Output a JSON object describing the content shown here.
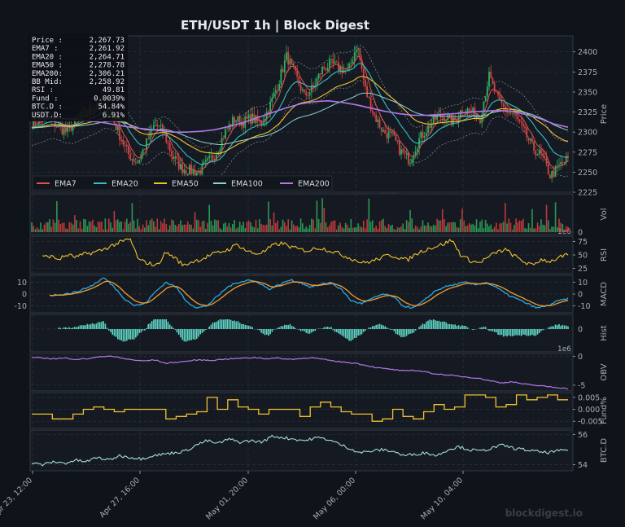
{
  "title": "ETH/USDT  1h  |  Block Digest",
  "watermark": "blockdigest.io",
  "colors": {
    "bg": "#0f131a",
    "panel": "#151a22",
    "grid": "#2a313c",
    "axis_text": "#a7adb6",
    "ema7": "#e05252",
    "ema20": "#35bfc4",
    "ema50": "#f2c12e",
    "ema100": "#8fd3d0",
    "ema200": "#b377e8",
    "up": "#2fae5f",
    "down": "#d9413f",
    "rsi": "#f2c12e",
    "macd": "#2ba8e0",
    "signal": "#f59a2b",
    "hist": "#5fd6c6",
    "obv": "#b377e8",
    "fund": "#f2c12e",
    "btcd": "#a8dcd8",
    "bbands": "#8a8f98"
  },
  "info_box": {
    "rows": [
      {
        "label": "Price :",
        "value": "2,267.73"
      },
      {
        "label": "EMA7  :",
        "value": "2,261.92"
      },
      {
        "label": "EMA20 :",
        "value": "2,264.71"
      },
      {
        "label": "EMA50 :",
        "value": "2,278.78"
      },
      {
        "label": "EMA200:",
        "value": "2,306.21"
      },
      {
        "label": "BB Mid:",
        "value": "2,258.92"
      },
      {
        "label": "RSI   :",
        "value": "49.81"
      },
      {
        "label": "Fund  :",
        "value": "0.0039%"
      },
      {
        "label": "BTC.D :",
        "value": "54.84%"
      },
      {
        "label": "USDT.D:",
        "value": "6.91%"
      }
    ]
  },
  "chart_data": {
    "type": "line",
    "x_ticks": [
      "Apr 23, 12:00",
      "Apr 27, 16:00",
      "May 01, 20:00",
      "May 06, 00:00",
      "May 10, 04:00"
    ],
    "panels": [
      {
        "name": "price",
        "ylabel": "Price",
        "ylim": [
          2225,
          2420
        ],
        "yticks": [
          "2225",
          "2250",
          "2275",
          "2300",
          "2325",
          "2350",
          "2375",
          "2400"
        ],
        "offset_label": "",
        "legend": [
          "EMA7",
          "EMA20",
          "EMA50",
          "EMA100",
          "EMA200"
        ],
        "legend_position": "bottom-left",
        "price_path_points": [
          2312,
          2315,
          2318,
          2306,
          2300,
          2314,
          2320,
          2330,
          2335,
          2322,
          2296,
          2272,
          2262,
          2285,
          2310,
          2300,
          2270,
          2255,
          2252,
          2250,
          2262,
          2275,
          2300,
          2316,
          2312,
          2318,
          2310,
          2330,
          2360,
          2395,
          2370,
          2345,
          2355,
          2378,
          2385,
          2380,
          2375,
          2410,
          2350,
          2320,
          2300,
          2295,
          2275,
          2265,
          2290,
          2305,
          2318,
          2320,
          2312,
          2330,
          2325,
          2318,
          2370,
          2340,
          2326,
          2320,
          2300,
          2280,
          2270,
          2245,
          2258,
          2267
        ],
        "ema200_points": [
          2318,
          2318,
          2317,
          2316,
          2314,
          2312,
          2309,
          2306,
          2304,
          2302,
          2300,
          2300,
          2301,
          2303,
          2307,
          2312,
          2318,
          2324,
          2330,
          2335,
          2338,
          2339,
          2337,
          2334,
          2330,
          2326,
          2323,
          2321,
          2321,
          2322,
          2323,
          2325,
          2326,
          2327,
          2326,
          2322,
          2317,
          2310,
          2306
        ]
      },
      {
        "name": "volume",
        "ylabel": "Vol",
        "offset_label": "1e6",
        "yticks": [
          "0"
        ]
      },
      {
        "name": "rsi",
        "ylabel": "RSI",
        "ylim": [
          15,
          85
        ],
        "yticks": [
          "25",
          "50",
          "75"
        ],
        "points": [
          40,
          45,
          48,
          42,
          50,
          46,
          52,
          55,
          60,
          68,
          74,
          80,
          40,
          35,
          30,
          55,
          45,
          30,
          38,
          42,
          50,
          55,
          60,
          70,
          58,
          52,
          56,
          68,
          72,
          65,
          60,
          58,
          64,
          60,
          55,
          48,
          42,
          35,
          38,
          44,
          50,
          46,
          40,
          52,
          60,
          65,
          70,
          78,
          50,
          40,
          35,
          45,
          55,
          60,
          48,
          38,
          30,
          42,
          38,
          45,
          50
        ]
      },
      {
        "name": "macd",
        "ylabel": "MACD",
        "ylim": [
          -16,
          16
        ],
        "yticks": [
          "-10",
          "0",
          "10"
        ],
        "macd_points": [
          -2,
          -1,
          -1,
          0,
          1,
          4,
          8,
          14,
          6,
          -4,
          -10,
          -8,
          2,
          10,
          6,
          -6,
          -12,
          -10,
          -2,
          6,
          10,
          12,
          10,
          4,
          8,
          12,
          10,
          6,
          8,
          10,
          4,
          -6,
          -8,
          -4,
          0,
          -2,
          -10,
          -12,
          -6,
          2,
          6,
          8,
          10,
          8,
          10,
          6,
          0,
          -4,
          -8,
          -12,
          -10,
          -6,
          -4
        ]
      },
      {
        "name": "hist",
        "ylabel": "Hist",
        "offset_label": "1e6",
        "yticks": [
          "0"
        ]
      },
      {
        "name": "obv",
        "ylabel": "OBV",
        "ylim": [
          -6,
          0.5
        ],
        "yticks": [
          "-5",
          "0"
        ],
        "points": [
          -0.2,
          -0.3,
          -0.4,
          -0.3,
          -0.5,
          -0.4,
          -0.1,
          0.1,
          -0.3,
          -0.6,
          -0.8,
          -0.6,
          -1.2,
          -1.0,
          -0.8,
          -0.6,
          -0.7,
          -0.5,
          -0.4,
          -0.3,
          -0.2,
          -0.4,
          -0.3,
          -0.5,
          -0.4,
          -0.2,
          -0.5,
          -0.8,
          -1.0,
          -1.2,
          -1.6,
          -2.0,
          -2.2,
          -2.5,
          -2.4,
          -2.6,
          -3.0,
          -3.2,
          -3.4,
          -3.6,
          -3.8,
          -4.2,
          -4.6,
          -4.4,
          -4.8,
          -5.0,
          -5.2,
          -5.4,
          -5.6
        ]
      },
      {
        "name": "funding",
        "ylabel": "Fund%",
        "ylim": [
          -0.008,
          0.007
        ],
        "yticks": [
          "-0.005",
          "0.000",
          "0.005"
        ],
        "points": [
          -0.002,
          -0.002,
          -0.004,
          -0.004,
          -0.002,
          0.0,
          0.001,
          0.0,
          -0.001,
          0.0,
          0.0,
          0.0,
          0.0,
          -0.004,
          -0.003,
          -0.002,
          -0.001,
          0.005,
          0.0,
          0.004,
          0.001,
          0.0,
          -0.002,
          0.0,
          0.0,
          0.0,
          -0.003,
          0.001,
          0.003,
          0.001,
          -0.001,
          -0.002,
          -0.002,
          -0.005,
          -0.004,
          0.0,
          -0.003,
          -0.004,
          -0.001,
          0.002,
          0.0,
          0.001,
          0.006,
          0.006,
          0.005,
          0.001,
          0.002,
          0.006,
          0.004,
          0.005,
          0.006,
          0.004
        ]
      },
      {
        "name": "btcd",
        "ylabel": "BTC.D",
        "ylim": [
          53.6,
          56.3
        ],
        "yticks": [
          "54",
          "56"
        ],
        "points": [
          54.1,
          54.0,
          54.2,
          54.1,
          54.3,
          54.2,
          54.5,
          54.3,
          54.6,
          54.5,
          54.4,
          54.6,
          54.7,
          54.8,
          54.9,
          55.3,
          55.6,
          55.4,
          55.7,
          55.5,
          55.6,
          55.5,
          55.9,
          55.8,
          55.7,
          55.6,
          55.8,
          55.7,
          55.4,
          55.1,
          54.8,
          54.9,
          55.0,
          54.9,
          54.6,
          54.7,
          54.8,
          54.6,
          55.0,
          55.2,
          55.0,
          54.9,
          55.1,
          55.3,
          55.1,
          55.0,
          54.9,
          54.8,
          54.9,
          55.0
        ]
      }
    ]
  }
}
